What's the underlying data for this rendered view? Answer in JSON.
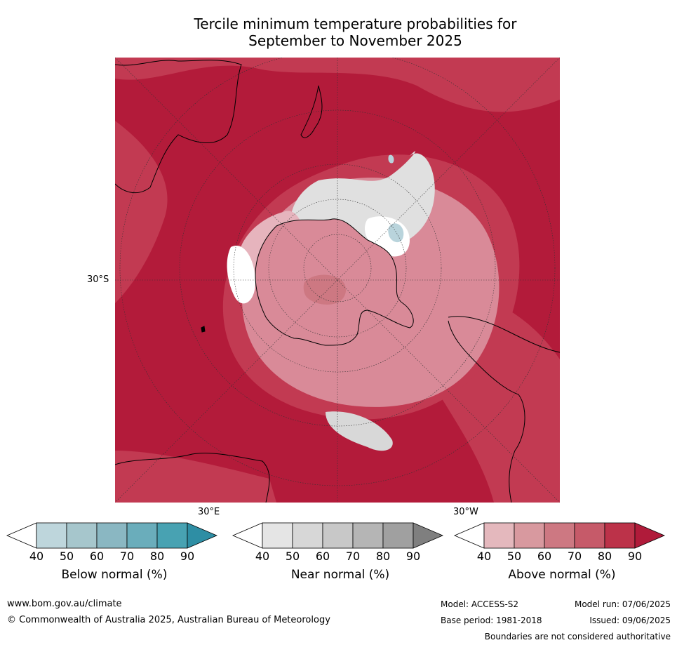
{
  "title_line1": "Tercile minimum temperature probabilities for",
  "title_line2": "September to November 2025",
  "map": {
    "lat_label": "30°S",
    "lon_label_east": "30°E",
    "lon_label_west": "30°W",
    "projection": "south polar stereographic"
  },
  "colorbars": [
    {
      "label": "Below normal (%)",
      "ticks": [
        "40",
        "50",
        "60",
        "70",
        "80",
        "90"
      ],
      "colors": [
        "#ffffff",
        "#bed6dc",
        "#a6c6cc",
        "#8ab7c2",
        "#6aadbb",
        "#48a2b2",
        "#2e8ea4"
      ]
    },
    {
      "label": "Near normal (%)",
      "ticks": [
        "40",
        "50",
        "60",
        "70",
        "80",
        "90"
      ],
      "colors": [
        "#ffffff",
        "#e5e5e5",
        "#d7d7d7",
        "#c8c8c8",
        "#b5b5b5",
        "#a0a0a0",
        "#7f7f7f"
      ]
    },
    {
      "label": "Above normal (%)",
      "ticks": [
        "40",
        "50",
        "60",
        "70",
        "80",
        "90"
      ],
      "colors": [
        "#ffffff",
        "#e4b8bd",
        "#d8999f",
        "#cd7882",
        "#c65a69",
        "#bc3249",
        "#b01b3a"
      ]
    }
  ],
  "footer": {
    "url": "www.bom.gov.au/climate",
    "copyright": "© Commonwealth of Australia 2025, Australian Bureau of Meteorology",
    "model": "Model: ACCESS-S2",
    "base_period": "Base period: 1981-2018",
    "model_run": "Model run: 07/06/2025",
    "issued": "Issued: 09/06/2025",
    "boundaries_note": "Boundaries are not considered authoritative"
  },
  "palette": {
    "ocean_red": "#b31b3a",
    "mid_red": "#c23a52",
    "light_red": "#d98a98",
    "pink": "#e6b4bd",
    "near_grey": "#e0e0e0",
    "white": "#ffffff",
    "blue": "#b9d4dc",
    "coast": "#000000"
  }
}
